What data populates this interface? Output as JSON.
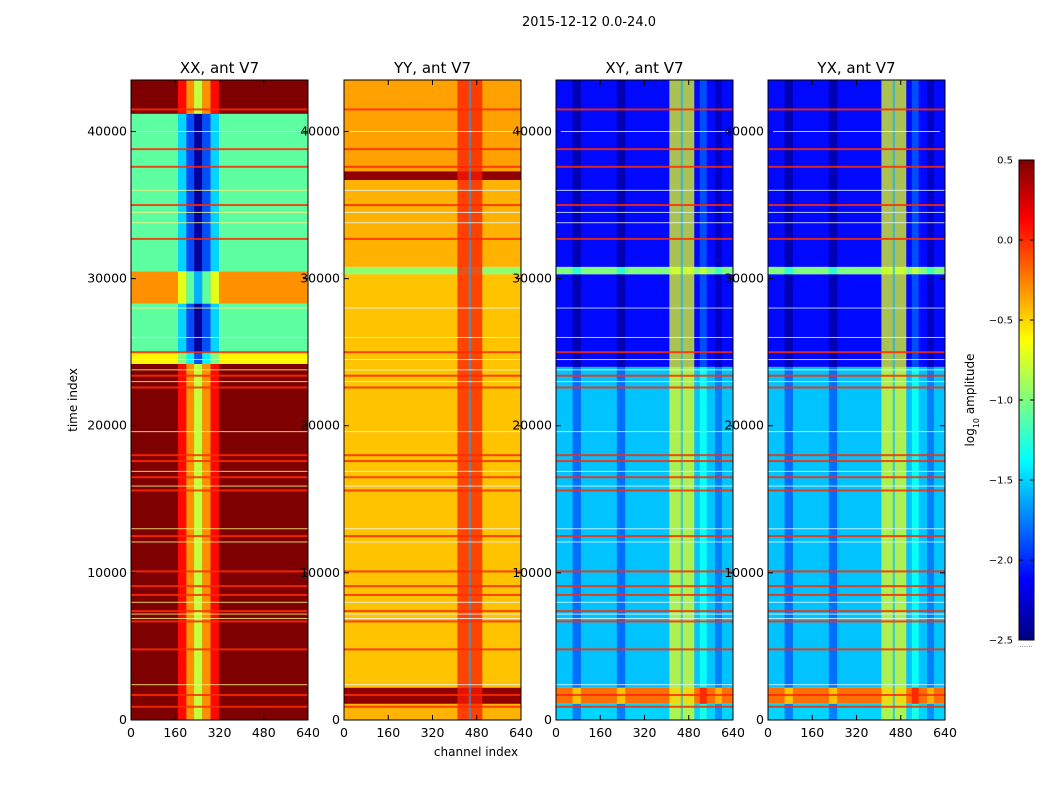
{
  "figure": {
    "suptitle": "2015-12-12 0.0-24.0",
    "xlabel": "channel index",
    "ylabel": "time index",
    "colorbar_label": "log10 amplitude",
    "colorbar_label_base": "log",
    "colorbar_label_sub": "10",
    "colorbar_label_rest": " amplitude",
    "colorbar_footer": "......",
    "colormap": "jet",
    "colormap_stops": [
      "#00007f",
      "#0000ff",
      "#007fff",
      "#00ffff",
      "#7fff7f",
      "#ffff00",
      "#ff7f00",
      "#ff0000",
      "#7f0000"
    ]
  },
  "chart_data": {
    "type": "heatmap",
    "title": "2015-12-12 0.0-24.0",
    "xlabel": "channel index",
    "ylabel": "time index",
    "x_range": [
      0,
      640
    ],
    "y_range": [
      0,
      43500
    ],
    "color_range": [
      -2.5,
      0.5
    ],
    "x_ticks": [
      0,
      160,
      320,
      480,
      640
    ],
    "x_tick_labels": [
      "0",
      "160",
      "320",
      "480",
      "640"
    ],
    "y_ticks": [
      0,
      10000,
      20000,
      30000,
      40000
    ],
    "y_tick_labels": [
      "0",
      "10000",
      "20000",
      "30000",
      "40000"
    ],
    "colorbar_ticks": [
      0.5,
      0.0,
      -0.5,
      -1.0,
      -1.5,
      -2.0,
      -2.5
    ],
    "colorbar_tick_labels": [
      "0.5",
      "0.0",
      "−0.5",
      "−1.0",
      "−1.5",
      "−2.0",
      "−2.5"
    ],
    "red_flag_rows": [
      900,
      1700,
      4800,
      6700,
      7400,
      8500,
      9100,
      10100,
      12500,
      15600,
      16500,
      17600,
      18000,
      22600,
      23400,
      25000,
      32700,
      35000,
      37600,
      38800,
      41500
    ],
    "light_flag_rows": [
      2400,
      6900,
      7200,
      8000,
      12100,
      13000,
      15900,
      16900,
      19600,
      23000,
      23800,
      24500,
      26000,
      28000,
      33800,
      34500,
      36000,
      40000
    ],
    "panels": [
      {
        "name": "XX, ant V7",
        "title": "XX, ant V7",
        "bands": [
          {
            "y0": 0,
            "y1": 24200,
            "value": 0.5
          },
          {
            "y0": 24200,
            "y1": 25000,
            "value": -0.6
          },
          {
            "y0": 25000,
            "y1": 28300,
            "value": -1.1
          },
          {
            "y0": 28300,
            "y1": 30500,
            "value": -0.3
          },
          {
            "y0": 30500,
            "y1": 41200,
            "value": -1.1
          },
          {
            "y0": 41200,
            "y1": 43500,
            "value": 0.5
          }
        ],
        "stripes": [
          {
            "x0": 170,
            "x1": 200,
            "delta": -0.4
          },
          {
            "x0": 200,
            "x1": 228,
            "delta": -0.8
          },
          {
            "x0": 228,
            "x1": 258,
            "delta": -1.3
          },
          {
            "x0": 258,
            "x1": 288,
            "delta": -0.8
          },
          {
            "x0": 288,
            "x1": 318,
            "delta": -0.4
          }
        ],
        "hot_columns": []
      },
      {
        "name": "YY, ant V7",
        "title": "YY, ant V7",
        "bands": [
          {
            "y0": 0,
            "y1": 1100,
            "value": -0.4
          },
          {
            "y0": 1100,
            "y1": 2200,
            "value": 0.45
          },
          {
            "y0": 2200,
            "y1": 30300,
            "value": -0.45
          },
          {
            "y0": 30300,
            "y1": 30800,
            "value": -0.95
          },
          {
            "y0": 30800,
            "y1": 36700,
            "value": -0.4
          },
          {
            "y0": 36700,
            "y1": 37300,
            "value": 0.45
          },
          {
            "y0": 37300,
            "y1": 43500,
            "value": -0.35
          }
        ],
        "stripes": [],
        "hot_columns": [
          {
            "x0": 410,
            "x1": 500,
            "value": 0.05
          }
        ]
      },
      {
        "name": "XY, ant V7",
        "title": "XY, ant V7",
        "bands": [
          {
            "y0": 0,
            "y1": 1100,
            "value": -1.5
          },
          {
            "y0": 1100,
            "y1": 2200,
            "value": -0.2
          },
          {
            "y0": 2200,
            "y1": 24000,
            "value": -1.55
          },
          {
            "y0": 24000,
            "y1": 30300,
            "value": -2.1
          },
          {
            "y0": 30300,
            "y1": 30800,
            "value": -1.0
          },
          {
            "y0": 30800,
            "y1": 43500,
            "value": -2.1
          }
        ],
        "stripes": [
          {
            "x0": 60,
            "x1": 90,
            "delta": -0.25
          },
          {
            "x0": 220,
            "x1": 250,
            "delta": -0.25
          },
          {
            "x0": 520,
            "x1": 545,
            "delta": 0.2
          },
          {
            "x0": 575,
            "x1": 600,
            "delta": -0.2
          }
        ],
        "hot_columns": [
          {
            "x0": 410,
            "x1": 500,
            "value": -0.7
          }
        ]
      },
      {
        "name": "YX, ant V7",
        "title": "YX, ant V7",
        "bands": [
          {
            "y0": 0,
            "y1": 1100,
            "value": -1.5
          },
          {
            "y0": 1100,
            "y1": 2200,
            "value": -0.2
          },
          {
            "y0": 2200,
            "y1": 24000,
            "value": -1.55
          },
          {
            "y0": 24000,
            "y1": 30300,
            "value": -2.1
          },
          {
            "y0": 30300,
            "y1": 30800,
            "value": -1.0
          },
          {
            "y0": 30800,
            "y1": 43500,
            "value": -2.1
          }
        ],
        "stripes": [
          {
            "x0": 60,
            "x1": 90,
            "delta": -0.25
          },
          {
            "x0": 220,
            "x1": 250,
            "delta": -0.25
          },
          {
            "x0": 520,
            "x1": 545,
            "delta": 0.2
          },
          {
            "x0": 575,
            "x1": 600,
            "delta": -0.2
          }
        ],
        "hot_columns": [
          {
            "x0": 410,
            "x1": 500,
            "value": -0.7
          }
        ]
      }
    ]
  }
}
